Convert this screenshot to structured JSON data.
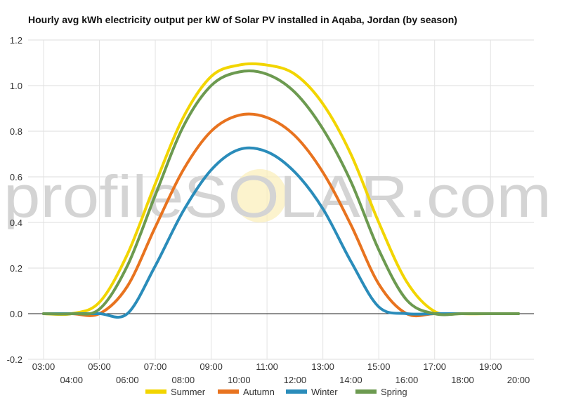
{
  "chart_data": {
    "type": "line",
    "title": "Hourly avg kWh electricity output per kW of Solar PV installed in Aqaba, Jordan (by season)",
    "xlabel": "",
    "ylabel": "",
    "xlim": [
      3,
      20
    ],
    "ylim": [
      -0.2,
      1.2
    ],
    "y_ticks": [
      -0.2,
      0.0,
      0.2,
      0.4,
      0.6,
      0.8,
      1.0,
      1.2
    ],
    "y_tick_labels": [
      "-0.2",
      "0.0",
      "0.2",
      "0.4",
      "0.6",
      "0.8",
      "1.0",
      "1.2"
    ],
    "x_ticks": [
      3,
      4,
      5,
      6,
      7,
      8,
      9,
      10,
      11,
      12,
      13,
      14,
      15,
      16,
      17,
      18,
      19,
      20
    ],
    "x_tick_labels": [
      "03:00",
      "04:00",
      "05:00",
      "06:00",
      "07:00",
      "08:00",
      "09:00",
      "10:00",
      "11:00",
      "12:00",
      "13:00",
      "14:00",
      "15:00",
      "16:00",
      "17:00",
      "18:00",
      "19:00",
      "20:00"
    ],
    "grid": true,
    "legend_position": "bottom",
    "x": [
      3,
      4,
      5,
      6,
      7,
      8,
      9,
      10,
      11,
      12,
      13,
      14,
      15,
      16,
      17,
      18,
      19,
      20
    ],
    "series": [
      {
        "name": "Summer",
        "color": "#f2d500",
        "values": [
          0.0,
          0.0,
          0.05,
          0.26,
          0.57,
          0.86,
          1.04,
          1.09,
          1.09,
          1.05,
          0.92,
          0.7,
          0.4,
          0.14,
          0.01,
          0.0,
          0.0,
          0.0
        ]
      },
      {
        "name": "Autumn",
        "color": "#e8731f",
        "values": [
          0.0,
          0.0,
          0.0,
          0.12,
          0.38,
          0.63,
          0.8,
          0.87,
          0.86,
          0.78,
          0.62,
          0.39,
          0.13,
          0.0,
          0.0,
          0.0,
          0.0,
          0.0
        ]
      },
      {
        "name": "Winter",
        "color": "#2a8cba",
        "values": [
          0.0,
          0.0,
          0.0,
          0.0,
          0.21,
          0.45,
          0.63,
          0.72,
          0.71,
          0.62,
          0.46,
          0.23,
          0.03,
          0.0,
          0.0,
          0.0,
          0.0,
          0.0
        ]
      },
      {
        "name": "Spring",
        "color": "#6c9a50",
        "values": [
          0.0,
          0.0,
          0.02,
          0.21,
          0.52,
          0.82,
          1.0,
          1.06,
          1.05,
          0.97,
          0.81,
          0.58,
          0.28,
          0.06,
          0.0,
          0.0,
          0.0,
          0.0
        ]
      }
    ],
    "watermark": "profileSOLAR.com"
  }
}
